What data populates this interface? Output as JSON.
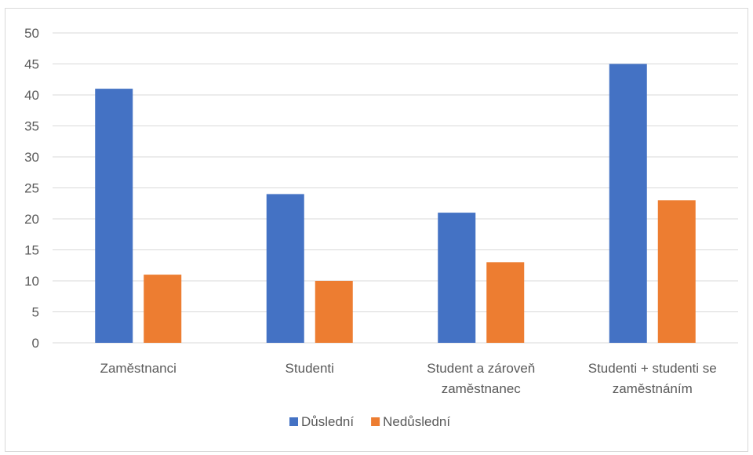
{
  "chart_data": {
    "type": "bar",
    "categories": [
      [
        "Zaměstnanci"
      ],
      [
        "Studenti"
      ],
      [
        "Student a zároveň",
        "zaměstnanec"
      ],
      [
        "Studenti + studenti se",
        "zaměstnáním"
      ]
    ],
    "series": [
      {
        "name": "Důslední",
        "color": "#4472c4",
        "values": [
          41,
          24,
          21,
          45
        ]
      },
      {
        "name": "Nedůslední",
        "color": "#ed7d31",
        "values": [
          11,
          10,
          13,
          23
        ]
      }
    ],
    "ylim": [
      0,
      50
    ],
    "yticks": [
      0,
      5,
      10,
      15,
      20,
      25,
      30,
      35,
      40,
      45,
      50
    ],
    "grid": true,
    "legend_position": "bottom",
    "gridline_color": "#d9d9d9",
    "text_color": "#595959"
  }
}
